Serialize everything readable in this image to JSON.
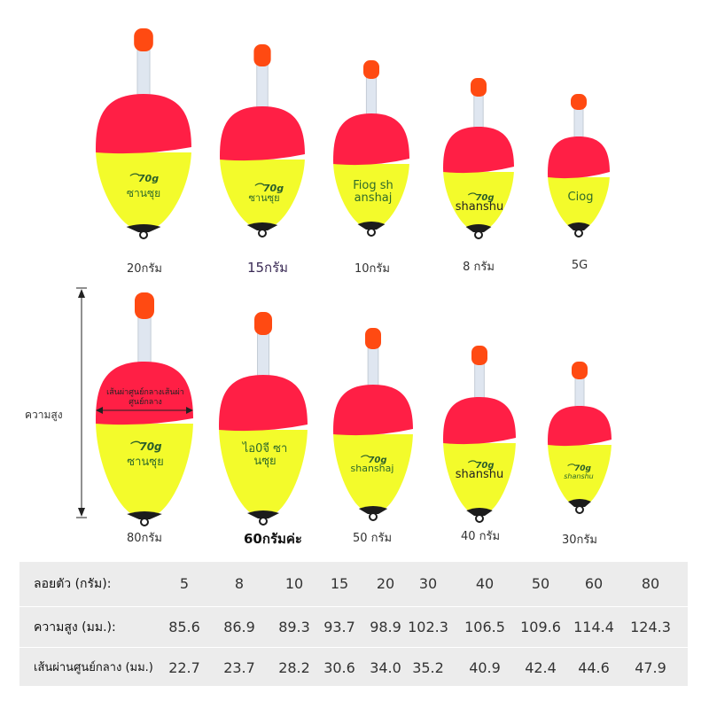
{
  "colors": {
    "cap": "#ff4a12",
    "top": "#ff1f45",
    "bottom": "#f3fb2b",
    "base": "#1c1c1c",
    "stem": "#dfe6f0"
  },
  "floats_row1": [
    {
      "label": "20กรัม",
      "text": "ซานซุย",
      "logo": "70g"
    },
    {
      "label": "15กรัม",
      "text": "ซานซุย",
      "logo": "70g"
    },
    {
      "label": "10กรัม",
      "text": "Fiog sh\nanshaj"
    },
    {
      "label": "8 กรัม",
      "text": "shanshu",
      "logo": "70g"
    },
    {
      "label": "5G",
      "text": "Ciog"
    }
  ],
  "floats_row2": [
    {
      "label": "80กรัม",
      "text": "ซานซุย",
      "logo": "70g"
    },
    {
      "label": "60กรัมค่ะ",
      "text": "ไอ0จี ซา\nนซุย"
    },
    {
      "label": "50 กรัม",
      "text": "shanshaj",
      "logo": "70g"
    },
    {
      "label": "40 กรัม",
      "text": "shanshu",
      "logo": "70g"
    },
    {
      "label": "30กรัม",
      "text": "shanshu",
      "logo": "70g"
    }
  ],
  "annotations": {
    "height": "ความสูง",
    "diameter": "เส้นผ่าศูนย์กลางเส้นผ่าศูนย์กลาง"
  },
  "table": {
    "rows": [
      {
        "header": "ลอยตัว (กรัม):",
        "values": [
          "5",
          "8",
          "10",
          "15",
          "20",
          "30",
          "40",
          "50",
          "60",
          "80"
        ]
      },
      {
        "header": "ความสูง (มม.):",
        "values": [
          "85.6",
          "86.9",
          "89.3",
          "93.7",
          "98.9",
          "102.3",
          "106.5",
          "109.6",
          "114.4",
          "124.3"
        ]
      },
      {
        "header": "เส้นผ่านศูนย์กลาง (มม.)",
        "values": [
          "22.7",
          "23.7",
          "28.2",
          "30.6",
          "34.0",
          "35.2",
          "40.9",
          "42.4",
          "44.6",
          "47.9"
        ]
      }
    ]
  }
}
